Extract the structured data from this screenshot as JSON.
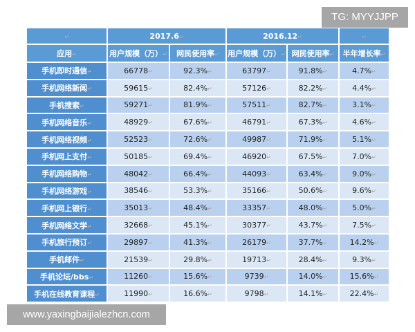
{
  "header": {
    "period1": "2017.6",
    "period2": "2016.12",
    "col_app": "应用",
    "col_users1": "用户规模（万）",
    "col_rate1": "网民使用率",
    "col_users2": "用户规模（万）",
    "col_rate2": "网民使用率",
    "col_growth": "半年增长率"
  },
  "rows": [
    {
      "app": "手机即时通信",
      "u1": "66778",
      "r1": "92.3%",
      "u2": "63797",
      "r2": "91.8%",
      "g": "4.7%"
    },
    {
      "app": "手机网络新闻",
      "u1": "59615",
      "r1": "82.4%",
      "u2": "57126",
      "r2": "82.2%",
      "g": "4.4%"
    },
    {
      "app": "手机搜索",
      "u1": "59271",
      "r1": "81.9%",
      "u2": "57511",
      "r2": "82.7%",
      "g": "3.1%"
    },
    {
      "app": "手机网络音乐",
      "u1": "48929",
      "r1": "67.6%",
      "u2": "46791",
      "r2": "67.3%",
      "g": "4.6%"
    },
    {
      "app": "手机网络视频",
      "u1": "52523",
      "r1": "72.6%",
      "u2": "49987",
      "r2": "71.9%",
      "g": "5.1%"
    },
    {
      "app": "手机网上支付",
      "u1": "50185",
      "r1": "69.4%",
      "u2": "46920",
      "r2": "67.5%",
      "g": "7.0%"
    },
    {
      "app": "手机网络购物",
      "u1": "48042",
      "r1": "66.4%",
      "u2": "44093",
      "r2": "63.4%",
      "g": "9.0%"
    },
    {
      "app": "手机网络游戏",
      "u1": "38546",
      "r1": "53.3%",
      "u2": "35166",
      "r2": "50.6%",
      "g": "9.6%"
    },
    {
      "app": "手机网上银行",
      "u1": "35013",
      "r1": "48.4%",
      "u2": "33357",
      "r2": "48.0%",
      "g": "5.0%"
    },
    {
      "app": "手机网络文学",
      "u1": "32668",
      "r1": "45.1%",
      "u2": "30377",
      "r2": "43.7%",
      "g": "7.5%"
    },
    {
      "app": "手机旅行预订",
      "u1": "29897",
      "r1": "41.3%",
      "u2": "26179",
      "r2": "37.7%",
      "g": "14.2%"
    },
    {
      "app": "手机邮件",
      "u1": "21539",
      "r1": "29.8%",
      "u2": "19713",
      "r2": "28.4%",
      "g": "9.3%"
    },
    {
      "app": "手机论坛/bbs",
      "u1": "11260",
      "r1": "15.6%",
      "u2": "9739",
      "r2": "14.0%",
      "g": "15.6%"
    },
    {
      "app": "手机在线教育课程",
      "u1": "11990",
      "r1": "16.6%",
      "u2": "9798",
      "r2": "14.1%",
      "g": "22.4%"
    }
  ],
  "watermarks": {
    "top": "TG: MYYJJPP",
    "bottom": "www.yaxingbaijialezhcn.com"
  }
}
